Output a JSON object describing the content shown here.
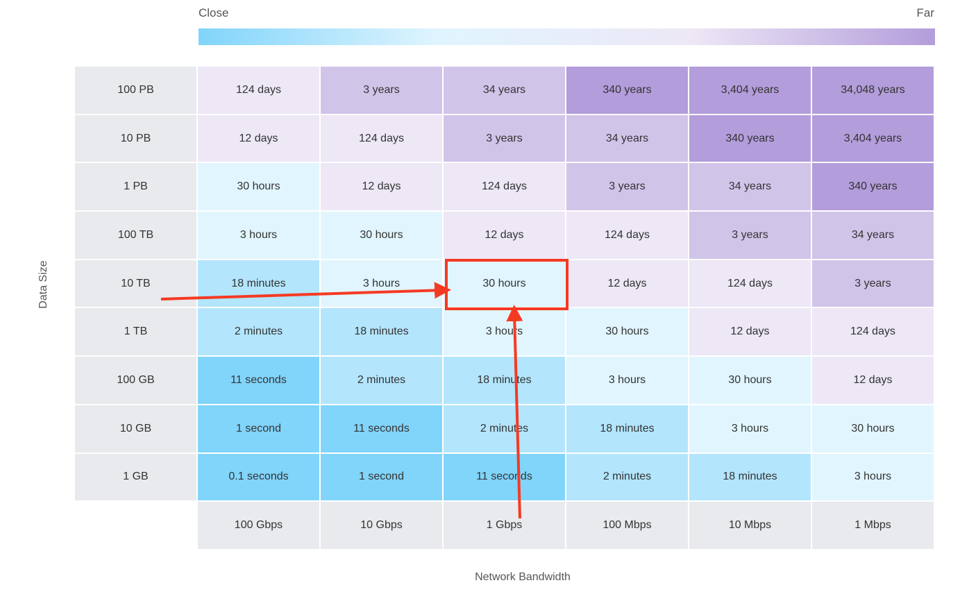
{
  "legend": {
    "close_label": "Close",
    "far_label": "Far",
    "gradient_colors": [
      "#81d4fa",
      "#e1f5fe",
      "#ede7f6",
      "#b39ddb"
    ]
  },
  "colors": {
    "level_1": "#81d4fa",
    "level_2": "#b3e5fc",
    "level_3": "#e1f5fe",
    "level_4": "#ede7f6",
    "level_5": "#d1c4e9",
    "level_6": "#b39ddb",
    "annotation": "#f53a22"
  },
  "chart_data": {
    "type": "heatmap",
    "xlabel": "Network Bandwidth",
    "ylabel": "Data Size",
    "columns": [
      "100 Gbps",
      "10 Gbps",
      "1 Gbps",
      "100 Mbps",
      "10 Mbps",
      "1 Mbps"
    ],
    "rows": [
      "100 PB",
      "10 PB",
      "1 PB",
      "100 TB",
      "10 TB",
      "1 TB",
      "100 GB",
      "10 GB",
      "1 GB"
    ],
    "cells": [
      [
        "124 days",
        "3 years",
        "34 years",
        "340 years",
        "3,404 years",
        "34,048 years"
      ],
      [
        "12 days",
        "124 days",
        "3 years",
        "34 years",
        "340 years",
        "3,404 years"
      ],
      [
        "30 hours",
        "12 days",
        "124 days",
        "3 years",
        "34 years",
        "340 years"
      ],
      [
        "3 hours",
        "30 hours",
        "12 days",
        "124 days",
        "3 years",
        "34 years"
      ],
      [
        "18 minutes",
        "3 hours",
        "30 hours",
        "12 days",
        "124 days",
        "3 years"
      ],
      [
        "2 minutes",
        "18 minutes",
        "3 hours",
        "30 hours",
        "12 days",
        "124 days"
      ],
      [
        "11 seconds",
        "2 minutes",
        "18 minutes",
        "3 hours",
        "30 hours",
        "12 days"
      ],
      [
        "1 second",
        "11 seconds",
        "2 minutes",
        "18 minutes",
        "3 hours",
        "30 hours"
      ],
      [
        "0.1 seconds",
        "1 second",
        "11 seconds",
        "2 minutes",
        "18 minutes",
        "3 hours"
      ]
    ],
    "levels": [
      [
        4,
        5,
        5,
        6,
        6,
        6
      ],
      [
        4,
        4,
        5,
        5,
        6,
        6
      ],
      [
        3,
        4,
        4,
        5,
        5,
        6
      ],
      [
        3,
        3,
        4,
        4,
        5,
        5
      ],
      [
        2,
        3,
        3,
        4,
        4,
        5
      ],
      [
        2,
        2,
        3,
        3,
        4,
        4
      ],
      [
        1,
        2,
        2,
        3,
        3,
        4
      ],
      [
        1,
        1,
        2,
        2,
        3,
        3
      ],
      [
        1,
        1,
        1,
        2,
        2,
        3
      ]
    ],
    "highlight": {
      "row": "10 TB",
      "column": "1 Gbps",
      "value": "30 hours"
    }
  }
}
